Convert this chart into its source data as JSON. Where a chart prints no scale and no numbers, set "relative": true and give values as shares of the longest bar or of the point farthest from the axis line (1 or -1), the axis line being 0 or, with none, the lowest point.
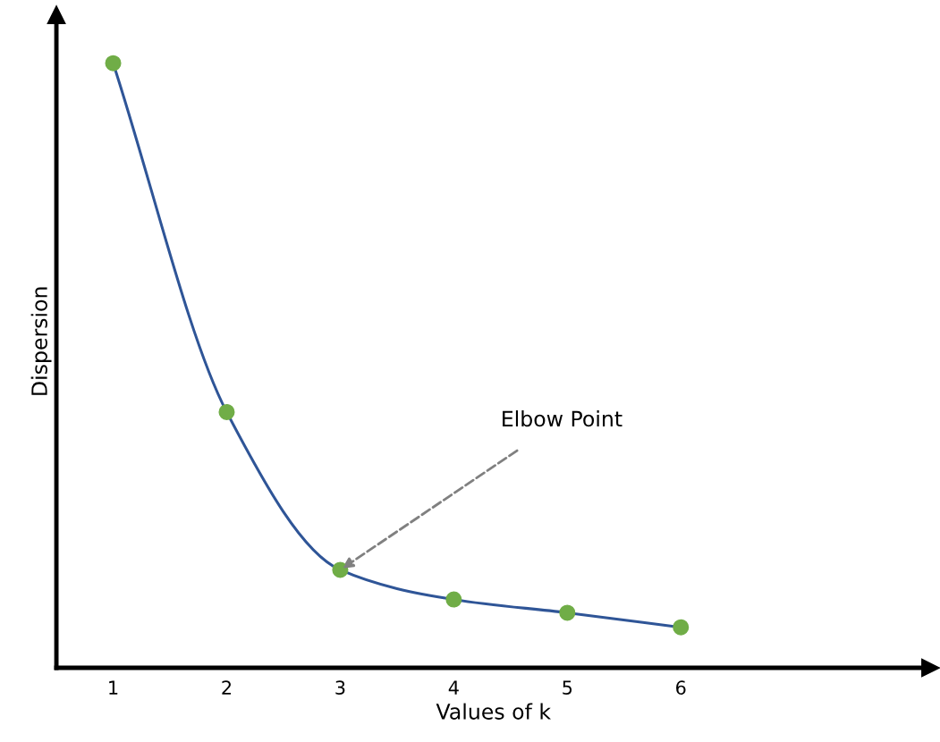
{
  "chart_data": {
    "type": "line",
    "xlabel": "Values of k",
    "ylabel": "Dispersion",
    "categories": [
      "1",
      "2",
      "3",
      "4",
      "5",
      "6"
    ],
    "relative": true,
    "marker": "circle",
    "line_style": "solid",
    "grid": false,
    "legend": false,
    "tick_labels": "x",
    "series": [
      {
        "color": "#2f5597",
        "marker": "none",
        "values": [
          1,
          0.423,
          0.162,
          0.113,
          0.091,
          0.067
        ]
      },
      {
        "type": "scatter",
        "color": "#70ad47",
        "values": [
          1,
          0.423,
          0.162,
          0.113,
          0.091,
          0.067
        ]
      }
    ],
    "annotations": [
      {
        "text": "Elbow Point",
        "x": "3",
        "y": 0.162
      }
    ]
  }
}
